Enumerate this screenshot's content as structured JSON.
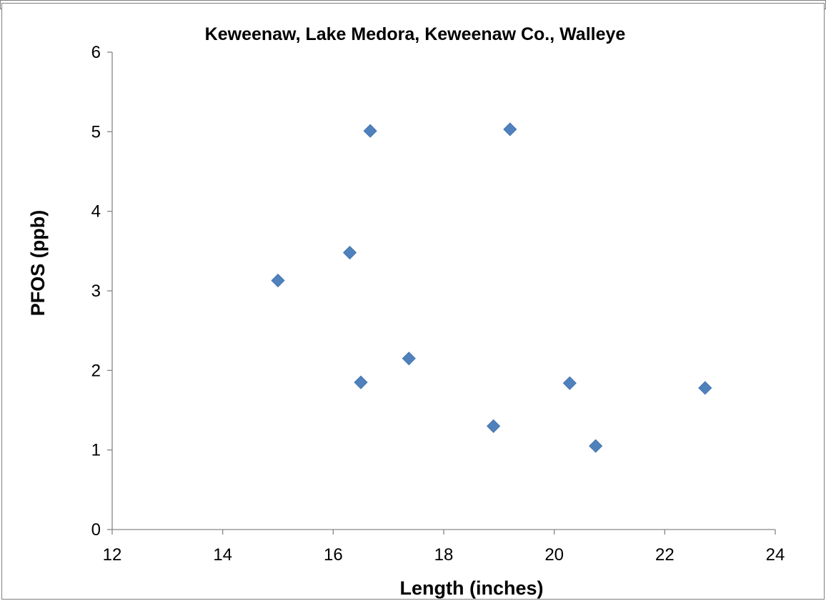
{
  "chart_data": {
    "type": "scatter",
    "title": "Keweenaw, Lake Medora, Keweenaw Co., Walleye",
    "xlabel": "Length (inches)",
    "ylabel": "PFOS (ppb)",
    "xlim": [
      12,
      24
    ],
    "ylim": [
      0,
      6
    ],
    "xticks": [
      "12",
      "14",
      "16",
      "18",
      "20",
      "22",
      "24"
    ],
    "yticks": [
      "0",
      "1",
      "2",
      "3",
      "4",
      "5",
      "6"
    ],
    "grid": false,
    "legend": "none",
    "marker": "diamond",
    "marker_color": "#4F81BD",
    "points": [
      {
        "x": 15.0,
        "y": 3.13
      },
      {
        "x": 16.3,
        "y": 3.48
      },
      {
        "x": 16.5,
        "y": 1.85
      },
      {
        "x": 16.67,
        "y": 5.01
      },
      {
        "x": 17.37,
        "y": 2.15
      },
      {
        "x": 18.9,
        "y": 1.3
      },
      {
        "x": 19.2,
        "y": 5.03
      },
      {
        "x": 20.28,
        "y": 1.84
      },
      {
        "x": 20.75,
        "y": 1.05
      },
      {
        "x": 22.73,
        "y": 1.78
      }
    ]
  }
}
